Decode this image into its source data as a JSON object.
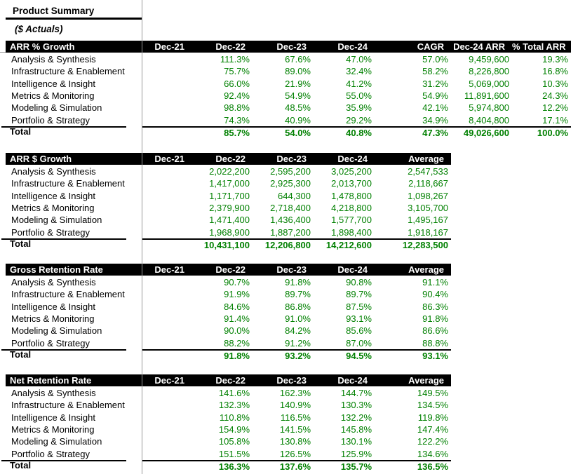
{
  "sheet": {
    "title": "Product Summary",
    "subtitle": "($ Actuals)"
  },
  "colors": {
    "value_green": "#008000",
    "header_bg": "#000000",
    "header_text": "#FFFFFF",
    "gridline_gray": "#999999"
  },
  "tables": [
    {
      "title": "ARR % Growth",
      "columns": [
        "Dec-21",
        "Dec-22",
        "Dec-23",
        "Dec-24",
        "CAGR",
        "Dec-24 ARR",
        "% Total ARR"
      ],
      "wide": true,
      "rows": [
        {
          "label": "Analysis & Synthesis",
          "values": [
            "",
            "111.3%",
            "67.6%",
            "47.0%",
            "57.0%",
            "9,459,600",
            "19.3%"
          ]
        },
        {
          "label": "Infrastructure & Enablement",
          "values": [
            "",
            "75.7%",
            "89.0%",
            "32.4%",
            "58.2%",
            "8,226,800",
            "16.8%"
          ]
        },
        {
          "label": "Intelligence & Insight",
          "values": [
            "",
            "66.0%",
            "21.9%",
            "41.2%",
            "31.2%",
            "5,069,000",
            "10.3%"
          ]
        },
        {
          "label": "Metrics & Monitoring",
          "values": [
            "",
            "92.4%",
            "54.9%",
            "55.0%",
            "54.9%",
            "11,891,600",
            "24.3%"
          ]
        },
        {
          "label": "Modeling & Simulation",
          "values": [
            "",
            "98.8%",
            "48.5%",
            "35.9%",
            "42.1%",
            "5,974,800",
            "12.2%"
          ]
        },
        {
          "label": "Portfolio & Strategy",
          "values": [
            "",
            "74.3%",
            "40.9%",
            "29.2%",
            "34.9%",
            "8,404,800",
            "17.1%"
          ]
        }
      ],
      "total": {
        "label": "Total",
        "values": [
          "",
          "85.7%",
          "54.0%",
          "40.8%",
          "47.3%",
          "49,026,600",
          "100.0%"
        ]
      }
    },
    {
      "title": "ARR $ Growth",
      "columns": [
        "Dec-21",
        "Dec-22",
        "Dec-23",
        "Dec-24",
        "Average"
      ],
      "wide": false,
      "rows": [
        {
          "label": "Analysis & Synthesis",
          "values": [
            "",
            "2,022,200",
            "2,595,200",
            "3,025,200",
            "2,547,533"
          ]
        },
        {
          "label": "Infrastructure & Enablement",
          "values": [
            "",
            "1,417,000",
            "2,925,300",
            "2,013,700",
            "2,118,667"
          ]
        },
        {
          "label": "Intelligence & Insight",
          "values": [
            "",
            "1,171,700",
            "644,300",
            "1,478,800",
            "1,098,267"
          ]
        },
        {
          "label": "Metrics & Monitoring",
          "values": [
            "",
            "2,379,900",
            "2,718,400",
            "4,218,800",
            "3,105,700"
          ]
        },
        {
          "label": "Modeling & Simulation",
          "values": [
            "",
            "1,471,400",
            "1,436,400",
            "1,577,700",
            "1,495,167"
          ]
        },
        {
          "label": "Portfolio & Strategy",
          "values": [
            "",
            "1,968,900",
            "1,887,200",
            "1,898,400",
            "1,918,167"
          ]
        }
      ],
      "total": {
        "label": "Total",
        "values": [
          "",
          "10,431,100",
          "12,206,800",
          "14,212,600",
          "12,283,500"
        ]
      }
    },
    {
      "title": "Gross Retention Rate",
      "columns": [
        "Dec-21",
        "Dec-22",
        "Dec-23",
        "Dec-24",
        "Average"
      ],
      "wide": false,
      "rows": [
        {
          "label": "Analysis & Synthesis",
          "values": [
            "",
            "90.7%",
            "91.8%",
            "90.8%",
            "91.1%"
          ]
        },
        {
          "label": "Infrastructure & Enablement",
          "values": [
            "",
            "91.9%",
            "89.7%",
            "89.7%",
            "90.4%"
          ]
        },
        {
          "label": "Intelligence & Insight",
          "values": [
            "",
            "84.6%",
            "86.8%",
            "87.5%",
            "86.3%"
          ]
        },
        {
          "label": "Metrics & Monitoring",
          "values": [
            "",
            "91.4%",
            "91.0%",
            "93.1%",
            "91.8%"
          ]
        },
        {
          "label": "Modeling & Simulation",
          "values": [
            "",
            "90.0%",
            "84.2%",
            "85.6%",
            "86.6%"
          ]
        },
        {
          "label": "Portfolio & Strategy",
          "values": [
            "",
            "88.2%",
            "91.2%",
            "87.0%",
            "88.8%"
          ]
        }
      ],
      "total": {
        "label": "Total",
        "values": [
          "",
          "91.8%",
          "93.2%",
          "94.5%",
          "93.1%"
        ]
      }
    },
    {
      "title": "Net Retention Rate",
      "columns": [
        "Dec-21",
        "Dec-22",
        "Dec-23",
        "Dec-24",
        "Average"
      ],
      "wide": false,
      "rows": [
        {
          "label": "Analysis & Synthesis",
          "values": [
            "",
            "141.6%",
            "162.3%",
            "144.7%",
            "149.5%"
          ]
        },
        {
          "label": "Infrastructure & Enablement",
          "values": [
            "",
            "132.3%",
            "140.9%",
            "130.3%",
            "134.5%"
          ]
        },
        {
          "label": "Intelligence & Insight",
          "values": [
            "",
            "110.8%",
            "116.5%",
            "132.2%",
            "119.8%"
          ]
        },
        {
          "label": "Metrics & Monitoring",
          "values": [
            "",
            "154.9%",
            "141.5%",
            "145.8%",
            "147.4%"
          ]
        },
        {
          "label": "Modeling & Simulation",
          "values": [
            "",
            "105.8%",
            "130.8%",
            "130.1%",
            "122.2%"
          ]
        },
        {
          "label": "Portfolio & Strategy",
          "values": [
            "",
            "151.5%",
            "126.5%",
            "125.9%",
            "134.6%"
          ]
        }
      ],
      "total": {
        "label": "Total",
        "values": [
          "",
          "136.3%",
          "137.6%",
          "135.7%",
          "136.5%"
        ]
      }
    }
  ]
}
